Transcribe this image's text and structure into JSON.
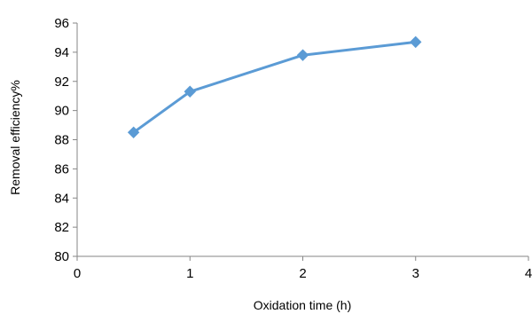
{
  "chart_data": {
    "type": "line",
    "title": "",
    "xlabel": "Oxidation time  (h)",
    "ylabel": "Removal efficiency%",
    "xlim": [
      0,
      4
    ],
    "ylim": [
      80,
      96
    ],
    "xticks": [
      "0",
      "1",
      "2",
      "3",
      "4"
    ],
    "yticks": [
      "80",
      "82",
      "84",
      "86",
      "88",
      "90",
      "92",
      "94",
      "96"
    ],
    "grid": false,
    "legend": "none",
    "series": [
      {
        "marker": "diamond",
        "color": "#5B9BD5",
        "points": [
          {
            "x": 0.5,
            "y": 88.5
          },
          {
            "x": 1,
            "y": 91.3
          },
          {
            "x": 2,
            "y": 93.8
          },
          {
            "x": 3,
            "y": 94.7
          }
        ]
      }
    ]
  }
}
